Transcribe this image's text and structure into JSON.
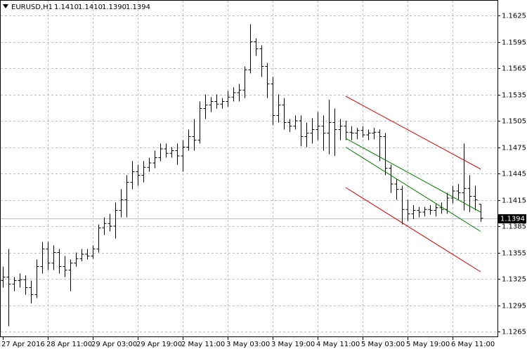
{
  "chart_data": {
    "type": "ohlc",
    "symbol": "EURUSD,H1",
    "last_bar_labels": [
      "1.1410",
      "1.1410",
      "1.1390",
      "1.1394"
    ],
    "categories": [
      "27 Apr 2016",
      null,
      null,
      null,
      null,
      null,
      null,
      null,
      "28 Apr 11:00",
      null,
      null,
      null,
      null,
      null,
      null,
      null,
      "29 Apr 03:00",
      null,
      null,
      null,
      null,
      null,
      null,
      null,
      "29 Apr 19:00",
      null,
      null,
      null,
      null,
      null,
      null,
      null,
      "2 May 11:00",
      null,
      null,
      null,
      null,
      null,
      null,
      null,
      "3 May 03:00",
      null,
      null,
      null,
      null,
      null,
      null,
      null,
      "3 May 19:00",
      null,
      null,
      null,
      null,
      null,
      null,
      null,
      "4 May 11:00",
      null,
      null,
      null,
      null,
      null,
      null,
      null,
      "5 May 03:00",
      null,
      null,
      null,
      null,
      null,
      null,
      null,
      "5 May 19:00",
      null,
      null,
      null,
      null,
      null,
      null,
      null,
      "6 May 11:00",
      null,
      null,
      null,
      null,
      null
    ],
    "open": [
      1.1323,
      1.1327,
      1.1319,
      1.1323,
      1.1324,
      1.1315,
      1.1307,
      1.1339,
      1.1359,
      1.1343,
      1.1355,
      1.1339,
      1.1335,
      1.1343,
      1.1348,
      1.1353,
      1.1351,
      1.1359,
      1.1383,
      1.1388,
      1.1385,
      1.1403,
      1.1415,
      1.1435,
      1.1447,
      1.1443,
      1.1452,
      1.1457,
      1.1463,
      1.1473,
      1.1468,
      1.1471,
      1.1465,
      1.1475,
      1.1487,
      1.1483,
      1.1519,
      1.1523,
      1.1527,
      1.1524,
      1.1527,
      1.1532,
      1.1537,
      1.154,
      1.1563,
      1.1595,
      1.1587,
      1.1567,
      1.1547,
      1.1511,
      1.1523,
      1.1503,
      1.1499,
      1.1505,
      1.1487,
      1.1491,
      1.1495,
      1.1499,
      1.1491,
      1.1503,
      1.1495,
      1.1499,
      1.1492,
      1.1491,
      1.1494,
      1.1489,
      1.1491,
      1.1492,
      1.1487,
      1.1451,
      1.1433,
      1.1427,
      1.1404,
      1.1399,
      1.1403,
      1.1401,
      1.1404,
      1.1403,
      1.1406,
      1.1404,
      1.1417,
      1.1425,
      1.1423,
      1.1428,
      1.1419,
      1.141
    ],
    "high": [
      1.1339,
      1.1359,
      1.1327,
      1.1331,
      1.1329,
      1.1323,
      1.1347,
      1.1367,
      1.1367,
      1.1363,
      1.1359,
      1.1351,
      1.1347,
      1.1355,
      1.1359,
      1.1359,
      1.1363,
      1.1387,
      1.1395,
      1.1399,
      1.1412,
      1.1427,
      1.1443,
      1.1459,
      1.1455,
      1.1459,
      1.1463,
      1.1471,
      1.1479,
      1.1479,
      1.1475,
      1.1479,
      1.1483,
      1.1495,
      1.1507,
      1.1527,
      1.1535,
      1.1532,
      1.1535,
      1.1531,
      1.1539,
      1.1543,
      1.1547,
      1.1567,
      1.1615,
      1.1599,
      1.1591,
      1.1571,
      1.1555,
      1.1535,
      1.1531,
      1.1507,
      1.1511,
      1.1511,
      1.1503,
      1.1508,
      1.1515,
      1.1511,
      1.1529,
      1.1519,
      1.1507,
      1.1505,
      1.1499,
      1.1497,
      1.1499,
      1.1495,
      1.1497,
      1.1495,
      1.1491,
      1.1455,
      1.1439,
      1.1431,
      1.1415,
      1.1409,
      1.1407,
      1.1407,
      1.1409,
      1.1411,
      1.1412,
      1.1423,
      1.1431,
      1.1433,
      1.1479,
      1.1443,
      1.1431,
      1.141
    ],
    "low": [
      1.1315,
      1.1271,
      1.1311,
      1.1315,
      1.1307,
      1.1297,
      1.1303,
      1.1331,
      1.1335,
      1.1335,
      1.1331,
      1.1327,
      1.1311,
      1.1339,
      1.1345,
      1.1347,
      1.1348,
      1.1355,
      1.1375,
      1.1379,
      1.1371,
      1.1395,
      1.1395,
      1.1427,
      1.1431,
      1.1435,
      1.1447,
      1.1451,
      1.1459,
      1.1463,
      1.1463,
      1.1455,
      1.1447,
      1.1471,
      1.1471,
      1.1479,
      1.1507,
      1.1515,
      1.1519,
      1.1519,
      1.1521,
      1.1527,
      1.1527,
      1.1531,
      1.1559,
      1.1579,
      1.1555,
      1.1531,
      1.15,
      1.1503,
      1.1495,
      1.1492,
      1.1495,
      1.1476,
      1.1475,
      1.1479,
      1.1483,
      1.1471,
      1.1467,
      1.1465,
      1.1483,
      1.1483,
      1.1483,
      1.1484,
      1.1486,
      1.1483,
      1.1484,
      1.1459,
      1.1443,
      1.1423,
      1.1415,
      1.1387,
      1.1391,
      1.1393,
      1.1395,
      1.1396,
      1.1398,
      1.1396,
      1.1399,
      1.1399,
      1.1411,
      1.1415,
      1.1403,
      1.1401,
      1.1403,
      1.139
    ],
    "close": [
      1.1327,
      1.1319,
      1.1323,
      1.1324,
      1.1315,
      1.1307,
      1.1339,
      1.1359,
      1.1343,
      1.1355,
      1.1339,
      1.1335,
      1.1343,
      1.1348,
      1.1353,
      1.1351,
      1.1359,
      1.1383,
      1.1388,
      1.1385,
      1.1403,
      1.1415,
      1.1435,
      1.1447,
      1.1443,
      1.1452,
      1.1457,
      1.1463,
      1.1473,
      1.1468,
      1.1471,
      1.1465,
      1.1475,
      1.1487,
      1.1483,
      1.1519,
      1.1523,
      1.1527,
      1.1524,
      1.1527,
      1.1532,
      1.1537,
      1.154,
      1.1563,
      1.1595,
      1.1587,
      1.1567,
      1.1547,
      1.1511,
      1.1523,
      1.1503,
      1.1499,
      1.1505,
      1.1487,
      1.1491,
      1.1495,
      1.1499,
      1.1491,
      1.1503,
      1.1495,
      1.1499,
      1.1492,
      1.1491,
      1.1494,
      1.1489,
      1.1491,
      1.1492,
      1.1487,
      1.1451,
      1.1433,
      1.1427,
      1.1404,
      1.1399,
      1.1403,
      1.1401,
      1.1404,
      1.1403,
      1.1406,
      1.1404,
      1.1417,
      1.1425,
      1.1423,
      1.1428,
      1.1419,
      1.1415,
      1.1394
    ],
    "color": "#000000",
    "current_price": {
      "value": 1.1394,
      "label": "1.1394"
    },
    "channels": [
      {
        "color": "#e00000",
        "x": [
          61,
          85
        ],
        "y": [
          1.1533,
          1.145
        ]
      },
      {
        "color": "#008000",
        "x": [
          61,
          85
        ],
        "y": [
          1.1485,
          1.1401
        ]
      },
      {
        "color": "#008000",
        "x": [
          61,
          85
        ],
        "y": [
          1.1475,
          1.1379
        ]
      },
      {
        "color": "#e00000",
        "x": [
          61,
          85
        ],
        "y": [
          1.1429,
          1.1333
        ]
      }
    ],
    "ylim": [
      1.12586,
      1.16426
    ],
    "yticks": [
      1.1625,
      1.1595,
      1.1565,
      1.1535,
      1.1505,
      1.1475,
      1.1445,
      1.1415,
      1.1385,
      1.1355,
      1.1325,
      1.1295,
      1.1265
    ],
    "grid": true
  }
}
